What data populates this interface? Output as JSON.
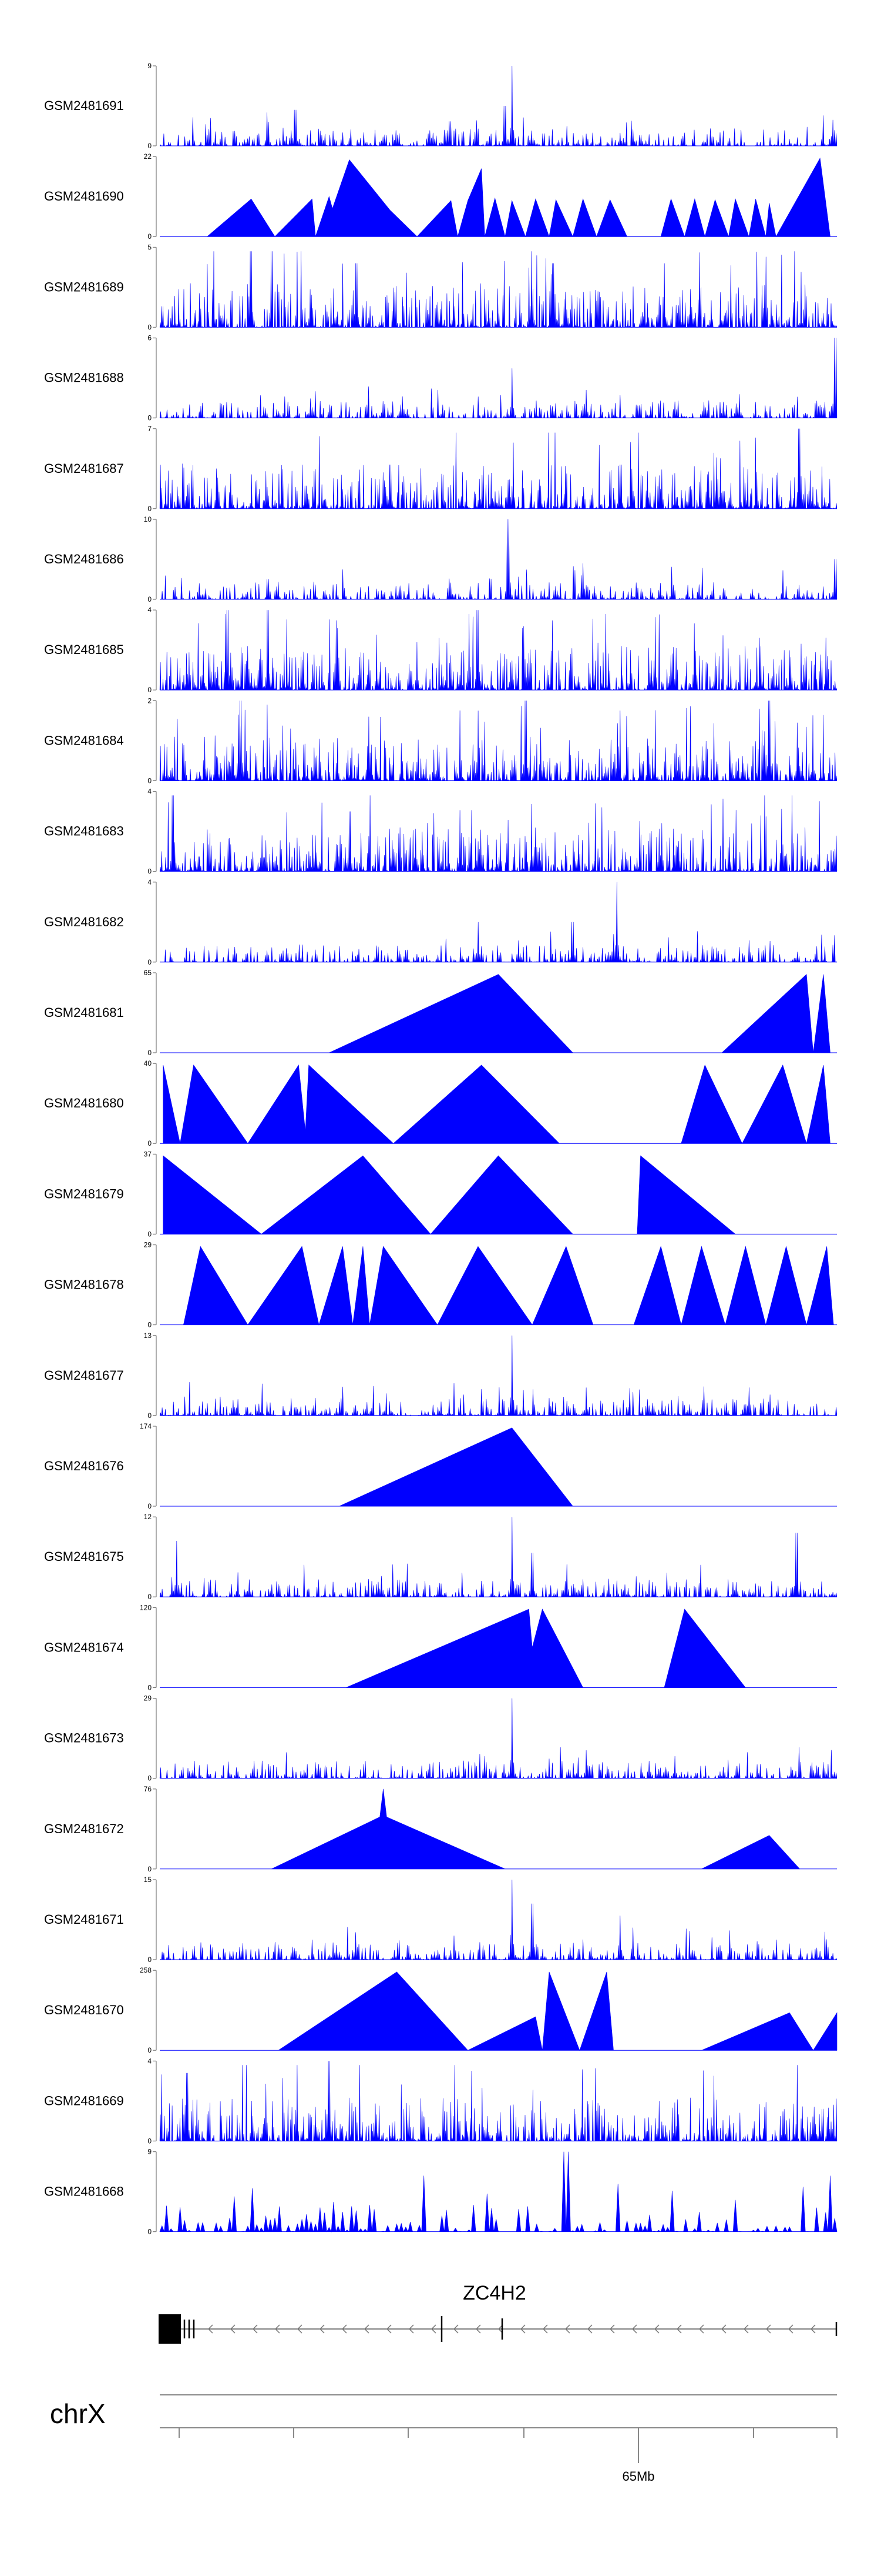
{
  "chart_data": {
    "type": "area",
    "title": "",
    "xlabel": "",
    "chromosome": "chrX",
    "gene": {
      "name": "ZC4H2",
      "strand": "-"
    },
    "xaxis": {
      "tick_labels": [
        "",
        "",
        "",
        "",
        "65Mb",
        "",
        ""
      ],
      "labeled_tick": "65Mb"
    },
    "fill_color": "#0000ff",
    "tracks": [
      {
        "name": "GSM2481691",
        "ymax": 9,
        "ymin": 0,
        "style": "dense",
        "seed": 11,
        "peaks": [
          {
            "x": 0.52,
            "h": 1.0
          },
          {
            "x": 0.16,
            "h": 0.3
          },
          {
            "x": 0.2,
            "h": 0.45
          },
          {
            "x": 0.51,
            "h": 0.5
          }
        ]
      },
      {
        "name": "GSM2481690",
        "ymax": 22,
        "ymin": 0,
        "style": "triangles",
        "points": [
          [
            0.07,
            0
          ],
          [
            0.135,
            0.47
          ],
          [
            0.17,
            0
          ],
          [
            0.225,
            0.47
          ],
          [
            0.23,
            0
          ],
          [
            0.25,
            0.5
          ],
          [
            0.255,
            0.35
          ],
          [
            0.28,
            0.96
          ],
          [
            0.34,
            0.33
          ],
          [
            0.38,
            0
          ],
          [
            0.43,
            0.45
          ],
          [
            0.44,
            0
          ],
          [
            0.455,
            0.45
          ],
          [
            0.475,
            0.85
          ],
          [
            0.48,
            0
          ],
          [
            0.495,
            0.48
          ],
          [
            0.51,
            0
          ],
          [
            0.52,
            0.45
          ],
          [
            0.54,
            0
          ],
          [
            0.555,
            0.47
          ],
          [
            0.575,
            0
          ],
          [
            0.585,
            0.46
          ],
          [
            0.61,
            0
          ],
          [
            0.625,
            0.47
          ],
          [
            0.645,
            0
          ],
          [
            0.665,
            0.46
          ],
          [
            0.69,
            0
          ],
          [
            0.74,
            0
          ],
          [
            0.755,
            0.47
          ],
          [
            0.775,
            0
          ],
          [
            0.79,
            0.47
          ],
          [
            0.805,
            0
          ],
          [
            0.82,
            0.46
          ],
          [
            0.84,
            0
          ],
          [
            0.85,
            0.47
          ],
          [
            0.87,
            0
          ],
          [
            0.88,
            0.47
          ],
          [
            0.895,
            0
          ],
          [
            0.9,
            0.42
          ],
          [
            0.91,
            0
          ],
          [
            0.975,
            0.98
          ],
          [
            0.99,
            0
          ]
        ]
      },
      {
        "name": "GSM2481689",
        "ymax": 5,
        "ymin": 0,
        "style": "busy",
        "seed": 23,
        "peaks": [
          {
            "x": 0.135,
            "h": 0.95
          },
          {
            "x": 0.29,
            "h": 0.8
          },
          {
            "x": 0.58,
            "h": 0.8
          }
        ]
      },
      {
        "name": "GSM2481688",
        "ymax": 6,
        "ymin": 0,
        "style": "dense",
        "seed": 37,
        "peaks": [
          {
            "x": 0.52,
            "h": 0.62
          },
          {
            "x": 0.997,
            "h": 1.0
          },
          {
            "x": 0.63,
            "h": 0.35
          }
        ]
      },
      {
        "name": "GSM2481687",
        "ymax": 7,
        "ymin": 0,
        "style": "busy",
        "seed": 41,
        "peaks": [
          {
            "x": 0.945,
            "h": 1.0
          },
          {
            "x": 0.34,
            "h": 0.55
          },
          {
            "x": 0.68,
            "h": 0.55
          }
        ]
      },
      {
        "name": "GSM2481686",
        "ymax": 10,
        "ymin": 0,
        "style": "dense",
        "seed": 53,
        "peaks": [
          {
            "x": 0.515,
            "h": 1.0
          },
          {
            "x": 0.997,
            "h": 0.5
          },
          {
            "x": 0.625,
            "h": 0.45
          },
          {
            "x": 0.16,
            "h": 0.25
          }
        ]
      },
      {
        "name": "GSM2481685",
        "ymax": 4,
        "ymin": 0,
        "style": "busy",
        "seed": 61,
        "peaks": [
          {
            "x": 0.1,
            "h": 1.0
          },
          {
            "x": 0.16,
            "h": 1.0
          },
          {
            "x": 0.47,
            "h": 1.0
          }
        ]
      },
      {
        "name": "GSM2481684",
        "ymax": 2,
        "ymin": 0,
        "style": "busy",
        "seed": 73,
        "peaks": [
          {
            "x": 0.12,
            "h": 1.0
          },
          {
            "x": 0.54,
            "h": 1.0
          },
          {
            "x": 0.9,
            "h": 1.0
          }
        ]
      },
      {
        "name": "GSM2481683",
        "ymax": 4,
        "ymin": 0,
        "style": "busy",
        "seed": 89,
        "peaks": [
          {
            "x": 0.02,
            "h": 0.95
          },
          {
            "x": 0.28,
            "h": 0.75
          }
        ]
      },
      {
        "name": "GSM2481682",
        "ymax": 4,
        "ymin": 0,
        "style": "dense",
        "seed": 97,
        "peaks": [
          {
            "x": 0.675,
            "h": 1.0
          },
          {
            "x": 0.47,
            "h": 0.5
          },
          {
            "x": 0.61,
            "h": 0.5
          }
        ]
      },
      {
        "name": "GSM2481681",
        "ymax": 65,
        "ymin": 0,
        "style": "triangles",
        "points": [
          [
            0.25,
            0
          ],
          [
            0.5,
            0.98
          ],
          [
            0.61,
            0
          ],
          [
            0.83,
            0
          ],
          [
            0.955,
            0.98
          ],
          [
            0.965,
            0
          ],
          [
            0.98,
            0.98
          ],
          [
            0.99,
            0
          ]
        ]
      },
      {
        "name": "GSM2481680",
        "ymax": 40,
        "ymin": 0,
        "style": "triangles",
        "points": [
          [
            0.005,
            0.98
          ],
          [
            0.03,
            0
          ],
          [
            0.05,
            0.98
          ],
          [
            0.13,
            0
          ],
          [
            0.205,
            0.98
          ],
          [
            0.215,
            0.15
          ],
          [
            0.22,
            0.98
          ],
          [
            0.345,
            0
          ],
          [
            0.475,
            0.98
          ],
          [
            0.59,
            0
          ],
          [
            0.77,
            0
          ],
          [
            0.805,
            0.98
          ],
          [
            0.86,
            0
          ],
          [
            0.92,
            0.98
          ],
          [
            0.955,
            0
          ],
          [
            0.98,
            0.98
          ],
          [
            0.99,
            0
          ]
        ]
      },
      {
        "name": "GSM2481679",
        "ymax": 37,
        "ymin": 0,
        "style": "triangles",
        "points": [
          [
            0.005,
            0.98
          ],
          [
            0.15,
            0
          ],
          [
            0.3,
            0.98
          ],
          [
            0.4,
            0
          ],
          [
            0.5,
            0.98
          ],
          [
            0.61,
            0
          ],
          [
            0.705,
            0
          ],
          [
            0.71,
            0.98
          ],
          [
            0.85,
            0
          ]
        ]
      },
      {
        "name": "GSM2481678",
        "ymax": 29,
        "ymin": 0,
        "style": "triangles",
        "points": [
          [
            0.035,
            0
          ],
          [
            0.06,
            0.98
          ],
          [
            0.13,
            0
          ],
          [
            0.21,
            0.98
          ],
          [
            0.235,
            0
          ],
          [
            0.27,
            0.98
          ],
          [
            0.285,
            0
          ],
          [
            0.3,
            0.98
          ],
          [
            0.31,
            0
          ],
          [
            0.33,
            0.98
          ],
          [
            0.41,
            0
          ],
          [
            0.47,
            0.98
          ],
          [
            0.55,
            0
          ],
          [
            0.6,
            0.98
          ],
          [
            0.64,
            0
          ],
          [
            0.7,
            0
          ],
          [
            0.74,
            0.98
          ],
          [
            0.77,
            0
          ],
          [
            0.8,
            0.98
          ],
          [
            0.835,
            0
          ],
          [
            0.865,
            0.98
          ],
          [
            0.895,
            0
          ],
          [
            0.925,
            0.98
          ],
          [
            0.955,
            0
          ],
          [
            0.985,
            0.98
          ],
          [
            0.995,
            0
          ]
        ]
      },
      {
        "name": "GSM2481677",
        "ymax": 13,
        "ymin": 0,
        "style": "dense",
        "seed": 101,
        "peaks": [
          {
            "x": 0.52,
            "h": 1.0
          },
          {
            "x": 0.63,
            "h": 0.35
          }
        ]
      },
      {
        "name": "GSM2481676",
        "ymax": 174,
        "ymin": 0,
        "style": "triangles",
        "points": [
          [
            0.265,
            0
          ],
          [
            0.52,
            0.98
          ],
          [
            0.61,
            0
          ],
          [
            0.85,
            0
          ]
        ]
      },
      {
        "name": "GSM2481675",
        "ymax": 12,
        "ymin": 0,
        "style": "dense",
        "seed": 113,
        "peaks": [
          {
            "x": 0.025,
            "h": 0.7
          },
          {
            "x": 0.52,
            "h": 1.0
          },
          {
            "x": 0.94,
            "h": 0.8
          },
          {
            "x": 0.55,
            "h": 0.55
          }
        ]
      },
      {
        "name": "GSM2481674",
        "ymax": 120,
        "ymin": 0,
        "style": "triangles",
        "points": [
          [
            0.275,
            0
          ],
          [
            0.545,
            0.98
          ],
          [
            0.55,
            0.5
          ],
          [
            0.565,
            0.98
          ],
          [
            0.625,
            0
          ],
          [
            0.745,
            0
          ],
          [
            0.775,
            0.98
          ],
          [
            0.865,
            0
          ]
        ]
      },
      {
        "name": "GSM2481673",
        "ymax": 29,
        "ymin": 0,
        "style": "dense",
        "seed": 127,
        "peaks": [
          {
            "x": 0.52,
            "h": 1.0
          },
          {
            "x": 0.63,
            "h": 0.35
          }
        ]
      },
      {
        "name": "GSM2481672",
        "ymax": 76,
        "ymin": 0,
        "style": "triangles",
        "points": [
          [
            0.165,
            0
          ],
          [
            0.325,
            0.65
          ],
          [
            0.33,
            1.0
          ],
          [
            0.335,
            0.65
          ],
          [
            0.51,
            0
          ],
          [
            0.8,
            0
          ],
          [
            0.9,
            0.42
          ],
          [
            0.945,
            0
          ]
        ]
      },
      {
        "name": "GSM2481671",
        "ymax": 15,
        "ymin": 0,
        "style": "dense",
        "seed": 131,
        "peaks": [
          {
            "x": 0.52,
            "h": 1.0
          },
          {
            "x": 0.55,
            "h": 0.7
          },
          {
            "x": 0.68,
            "h": 0.55
          }
        ]
      },
      {
        "name": "GSM2481670",
        "ymax": 258,
        "ymin": 0,
        "style": "triangles",
        "points": [
          [
            0.175,
            0
          ],
          [
            0.35,
            0.98
          ],
          [
            0.455,
            0
          ],
          [
            0.555,
            0.42
          ],
          [
            0.565,
            0
          ],
          [
            0.575,
            0.98
          ],
          [
            0.62,
            0
          ],
          [
            0.66,
            0.98
          ],
          [
            0.67,
            0
          ],
          [
            0.8,
            0
          ],
          [
            0.93,
            0.47
          ],
          [
            0.965,
            0
          ],
          [
            1.0,
            0.47
          ]
        ]
      },
      {
        "name": "GSM2481669",
        "ymax": 4,
        "ymin": 0,
        "style": "busy",
        "seed": 149,
        "peaks": [
          {
            "x": 0.25,
            "h": 1.0
          },
          {
            "x": 0.04,
            "h": 0.85
          }
        ]
      },
      {
        "name": "GSM2481668",
        "ymax": 9,
        "ymin": 0,
        "style": "sawtooth",
        "seed": 157,
        "peaks": [
          {
            "x": 0.6,
            "h": 1.0
          },
          {
            "x": 0.39,
            "h": 0.7
          },
          {
            "x": 0.99,
            "h": 0.7
          }
        ]
      }
    ]
  }
}
